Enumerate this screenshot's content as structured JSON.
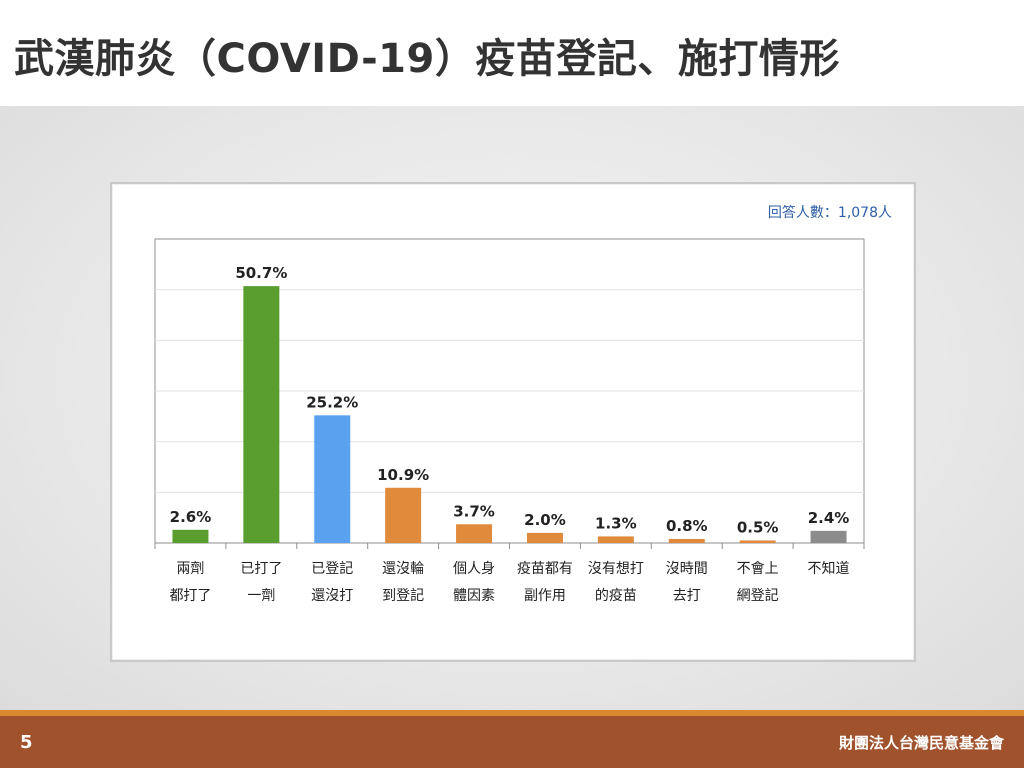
{
  "slide": {
    "title": "武漢肺炎（COVID-19）疫苗登記、施打情形",
    "page_number": "5",
    "organization": "財團法人台灣民意基金會"
  },
  "panel": {
    "sample_note": "回答人數：1,078人"
  },
  "chart_data": {
    "type": "bar",
    "categories": [
      [
        "兩劑",
        "都打了"
      ],
      [
        "已打了",
        "一劑"
      ],
      [
        "已登記",
        "還沒打"
      ],
      [
        "還沒輪",
        "到登記"
      ],
      [
        "個人身",
        "體因素"
      ],
      [
        "疫苗都有",
        "副作用"
      ],
      [
        "沒有想打",
        "的疫苗"
      ],
      [
        "沒時間",
        "去打"
      ],
      [
        "不會上",
        "網登記"
      ],
      [
        "不知道"
      ]
    ],
    "values": [
      2.6,
      50.7,
      25.2,
      10.9,
      3.7,
      2.0,
      1.3,
      0.8,
      0.5,
      2.4
    ],
    "value_labels": [
      "2.6%",
      "50.7%",
      "25.2%",
      "10.9%",
      "3.7%",
      "2.0%",
      "1.3%",
      "0.8%",
      "0.5%",
      "2.4%"
    ],
    "colors": [
      "#5a9e2f",
      "#5a9e2f",
      "#5aa2f0",
      "#e08a3c",
      "#e08a3c",
      "#e08a3c",
      "#e08a3c",
      "#e08a3c",
      "#e08a3c",
      "#8c8c8c"
    ],
    "ylim": [
      0,
      60
    ],
    "grid": true,
    "legend": "none"
  }
}
